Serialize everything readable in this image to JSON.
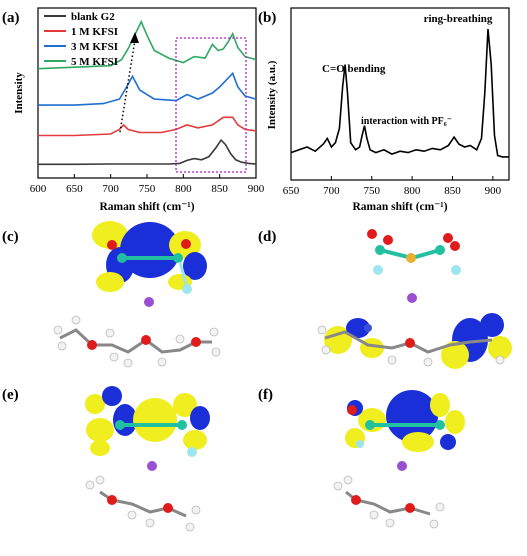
{
  "panel_labels": {
    "a": "(a)",
    "b": "(b)",
    "c": "(c)",
    "d": "(d)",
    "e": "(e)",
    "f": "(f)"
  },
  "chart_data": [
    {
      "type": "line",
      "panel": "(a)",
      "xlabel": "Raman shift (cm⁻¹)",
      "ylabel": "Intensity",
      "xlim": [
        600,
        900
      ],
      "xticks": [
        600,
        650,
        700,
        750,
        800,
        850,
        900
      ],
      "legend_position": "top-left",
      "series": [
        {
          "name": "blank G2",
          "color": "#3a3a3a",
          "x": [
            600,
            650,
            700,
            740,
            780,
            795,
            805,
            815,
            825,
            835,
            845,
            852,
            858,
            865,
            872,
            880,
            890,
            900
          ],
          "y": [
            0.05,
            0.05,
            0.06,
            0.06,
            0.06,
            0.08,
            0.18,
            0.24,
            0.2,
            0.3,
            0.6,
            0.85,
            0.7,
            0.4,
            0.2,
            0.12,
            0.08,
            0.06
          ]
        },
        {
          "name": "1 M KFSI",
          "color": "#e23a3a",
          "x": [
            600,
            650,
            700,
            712,
            718,
            724,
            740,
            770,
            790,
            805,
            820,
            840,
            855,
            868,
            875,
            885,
            900
          ],
          "y": [
            1.0,
            1.0,
            1.05,
            1.2,
            1.35,
            1.2,
            1.1,
            1.1,
            1.2,
            1.35,
            1.25,
            1.35,
            1.6,
            1.6,
            1.35,
            1.2,
            1.15
          ]
        },
        {
          "name": "3 M KFSI",
          "color": "#1e6fd0",
          "x": [
            600,
            650,
            690,
            712,
            722,
            730,
            740,
            760,
            790,
            805,
            820,
            840,
            850,
            862,
            868,
            875,
            885,
            900
          ],
          "y": [
            2.0,
            2.0,
            2.05,
            2.2,
            2.6,
            2.95,
            2.5,
            2.2,
            2.15,
            2.35,
            2.2,
            2.4,
            2.6,
            2.9,
            3.05,
            2.6,
            2.3,
            2.2
          ]
        },
        {
          "name": "5 M KFSI",
          "color": "#2fa862",
          "x": [
            600,
            650,
            700,
            715,
            725,
            735,
            742,
            750,
            760,
            780,
            800,
            815,
            830,
            840,
            848,
            855,
            862,
            868,
            875,
            885,
            900
          ],
          "y": [
            3.2,
            3.25,
            3.3,
            3.5,
            3.9,
            4.4,
            4.75,
            4.3,
            3.8,
            3.55,
            3.4,
            3.6,
            3.55,
            4.0,
            3.8,
            3.85,
            4.1,
            4.35,
            3.9,
            3.6,
            3.5
          ]
        }
      ],
      "annotations": [
        "dotted arrow indicating peak shift",
        "dashed magenta box 790–895 cm⁻¹"
      ]
    },
    {
      "type": "line",
      "panel": "(b)",
      "xlabel": "Raman shift (cm⁻¹)",
      "ylabel": "Intensity (a.u.)",
      "xlim": [
        650,
        920
      ],
      "xticks": [
        650,
        700,
        750,
        800,
        850,
        900
      ],
      "series": [
        {
          "color": "#000000",
          "x": [
            650,
            660,
            670,
            680,
            690,
            695,
            700,
            705,
            710,
            714,
            717,
            720,
            724,
            730,
            735,
            738,
            741,
            744,
            748,
            755,
            765,
            775,
            785,
            795,
            805,
            815,
            825,
            835,
            845,
            852,
            858,
            865,
            872,
            880,
            886,
            890,
            894,
            898,
            902,
            906,
            912,
            920
          ],
          "y": [
            0.08,
            0.1,
            0.12,
            0.09,
            0.14,
            0.18,
            0.12,
            0.15,
            0.25,
            0.55,
            0.7,
            0.5,
            0.15,
            0.1,
            0.12,
            0.2,
            0.27,
            0.18,
            0.1,
            0.08,
            0.1,
            0.07,
            0.09,
            0.08,
            0.1,
            0.09,
            0.11,
            0.1,
            0.13,
            0.19,
            0.14,
            0.12,
            0.13,
            0.1,
            0.18,
            0.5,
            0.95,
            0.7,
            0.2,
            0.06,
            0.05,
            0.05
          ]
        }
      ],
      "annotations": [
        {
          "text": "ring-breathing",
          "x": 895
        },
        {
          "text": "C=O bending",
          "x": 717
        },
        {
          "text": "interaction with PF₆⁻",
          "x": 741
        }
      ]
    }
  ],
  "colors": {
    "orbital_blue": "#1a2fd8",
    "orbital_yellow": "#f0ee1e",
    "carbon": "#7a7a7a",
    "oxygen": "#e01b1b",
    "hydrogen": "#f2f2f2",
    "potassium": "#9a4fd0",
    "nitrogen": "#3a50d8",
    "fluorine": "#9ee6ee",
    "sulfur": "#e8b030",
    "teal_bond": "#20c0a0"
  }
}
